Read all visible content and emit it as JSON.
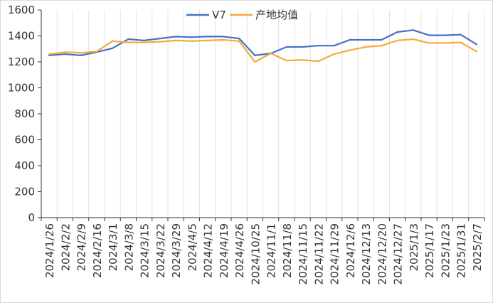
{
  "chart_data": {
    "type": "line",
    "title": "",
    "xlabel": "",
    "ylabel": "",
    "ylim": [
      0,
      1600
    ],
    "yticks": [
      0,
      200,
      400,
      600,
      800,
      1000,
      1200,
      1400,
      1600
    ],
    "legend_position": "top-center",
    "grid": "vertical",
    "categories": [
      "2024/1/26",
      "2024/2/2",
      "2024/2/9",
      "2024/2/16",
      "2024/3/1",
      "2024/3/8",
      "2024/3/15",
      "2024/3/22",
      "2024/3/29",
      "2024/4/5",
      "2024/4/12",
      "2024/4/19",
      "2024/4/26",
      "2024/10/25",
      "2024/11/1",
      "2024/11/8",
      "2024/11/15",
      "2024/11/22",
      "2024/11/29",
      "2024/12/6",
      "2024/12/13",
      "2024/12/20",
      "2024/12/27",
      "2025/1/3",
      "2025/1/17",
      "2025/1/23",
      "2025/1/31",
      "2025/2/7"
    ],
    "series": [
      {
        "name": "V7",
        "color": "#4472c4",
        "values": [
          1250,
          1260,
          1250,
          1275,
          1305,
          1375,
          1365,
          1380,
          1395,
          1390,
          1395,
          1395,
          1380,
          1250,
          1265,
          1315,
          1315,
          1325,
          1325,
          1370,
          1370,
          1370,
          1430,
          1445,
          1405,
          1405,
          1410,
          1335
        ]
      },
      {
        "name": "产地均值",
        "color": "#f5a93b",
        "values": [
          1260,
          1275,
          1270,
          1280,
          1360,
          1350,
          1350,
          1355,
          1365,
          1360,
          1365,
          1370,
          1360,
          1200,
          1265,
          1210,
          1215,
          1205,
          1260,
          1290,
          1315,
          1325,
          1365,
          1375,
          1345,
          1345,
          1350,
          1280
        ]
      }
    ]
  }
}
